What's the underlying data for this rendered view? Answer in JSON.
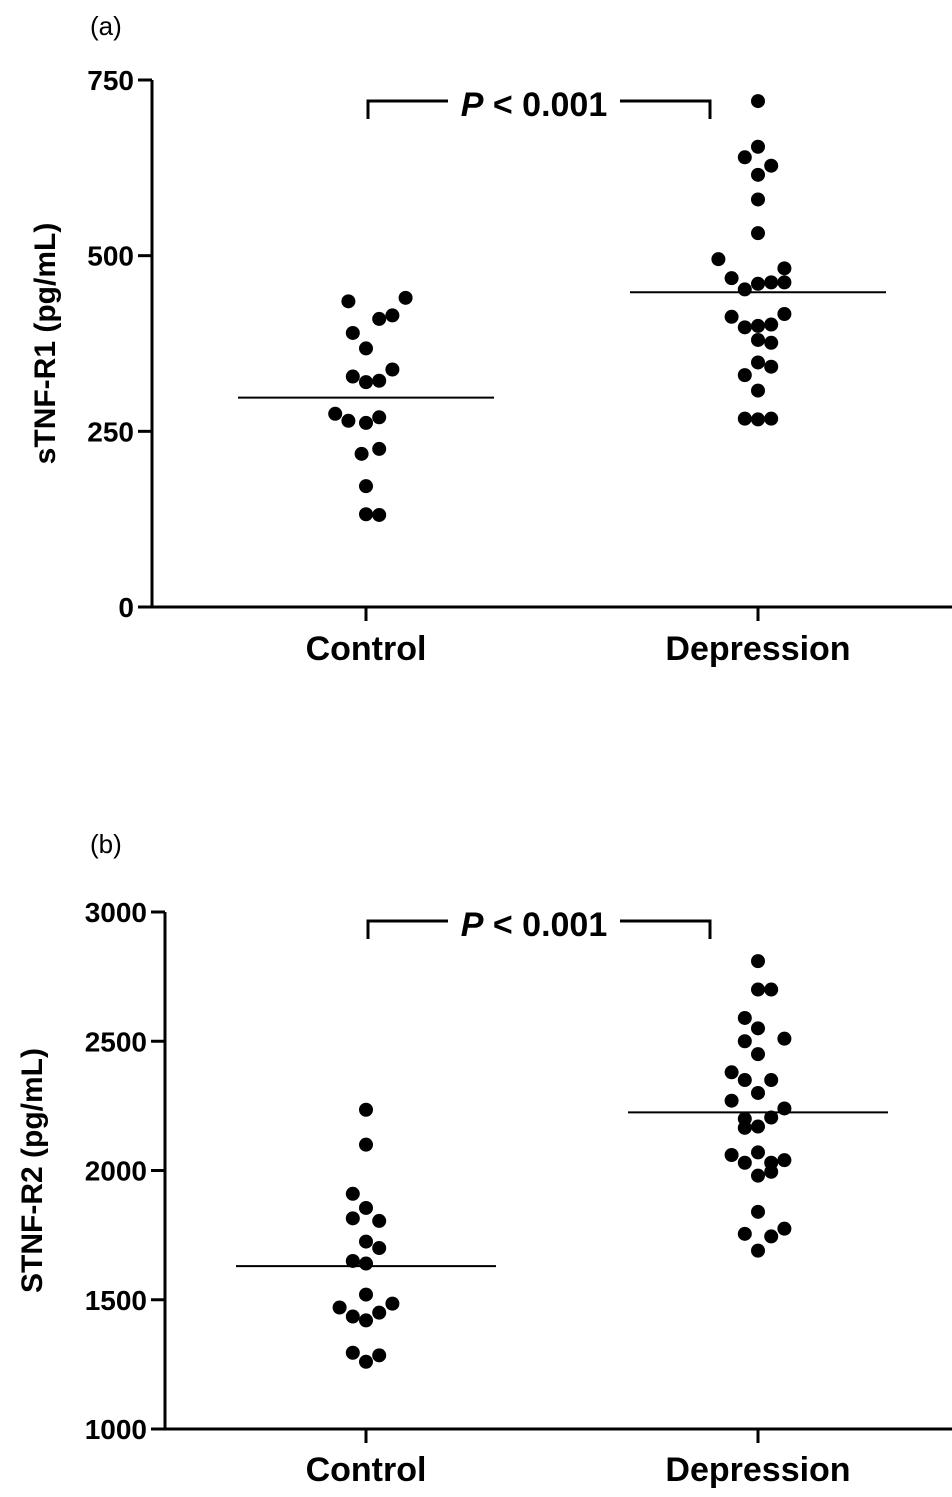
{
  "chart_data": [
    {
      "panel_label": "(a)",
      "type": "scatter",
      "ylabel": "sTNF-R1 (pg/mL)",
      "ylim": [
        0,
        750
      ],
      "yticks": [
        "0",
        "250",
        "500",
        "750"
      ],
      "categories": [
        "Control",
        "Depression"
      ],
      "annotation": {
        "italic": "P",
        "rest": " < 0.001"
      },
      "series": [
        {
          "category": "Control",
          "median": 298,
          "points": [
            {
              "x": -0.08,
              "y": 435
            },
            {
              "x": 0.06,
              "y": 410
            },
            {
              "x": 0.12,
              "y": 415
            },
            {
              "x": 0.18,
              "y": 440
            },
            {
              "x": -0.06,
              "y": 390
            },
            {
              "x": 0.0,
              "y": 368
            },
            {
              "x": -0.06,
              "y": 328
            },
            {
              "x": 0.0,
              "y": 320
            },
            {
              "x": 0.06,
              "y": 322
            },
            {
              "x": 0.12,
              "y": 338
            },
            {
              "x": -0.14,
              "y": 275
            },
            {
              "x": -0.08,
              "y": 265
            },
            {
              "x": 0.0,
              "y": 262
            },
            {
              "x": 0.06,
              "y": 270
            },
            {
              "x": -0.02,
              "y": 218
            },
            {
              "x": 0.06,
              "y": 225
            },
            {
              "x": 0.0,
              "y": 172
            },
            {
              "x": 0.0,
              "y": 132
            },
            {
              "x": 0.06,
              "y": 131
            }
          ]
        },
        {
          "category": "Depression",
          "median": 448,
          "points": [
            {
              "x": 0.0,
              "y": 720
            },
            {
              "x": -0.06,
              "y": 640
            },
            {
              "x": 0.0,
              "y": 655
            },
            {
              "x": 0.06,
              "y": 628
            },
            {
              "x": 0.0,
              "y": 615
            },
            {
              "x": 0.0,
              "y": 580
            },
            {
              "x": 0.0,
              "y": 532
            },
            {
              "x": -0.18,
              "y": 495
            },
            {
              "x": 0.12,
              "y": 482
            },
            {
              "x": -0.12,
              "y": 468
            },
            {
              "x": -0.06,
              "y": 452
            },
            {
              "x": 0.0,
              "y": 460
            },
            {
              "x": 0.06,
              "y": 462
            },
            {
              "x": 0.12,
              "y": 462
            },
            {
              "x": -0.12,
              "y": 413
            },
            {
              "x": -0.06,
              "y": 398
            },
            {
              "x": 0.0,
              "y": 400
            },
            {
              "x": 0.06,
              "y": 402
            },
            {
              "x": 0.12,
              "y": 417
            },
            {
              "x": 0.0,
              "y": 380
            },
            {
              "x": 0.06,
              "y": 376
            },
            {
              "x": 0.0,
              "y": 348
            },
            {
              "x": 0.06,
              "y": 342
            },
            {
              "x": -0.06,
              "y": 330
            },
            {
              "x": 0.0,
              "y": 308
            },
            {
              "x": -0.06,
              "y": 268
            },
            {
              "x": 0.0,
              "y": 267
            },
            {
              "x": 0.06,
              "y": 268
            }
          ]
        }
      ]
    },
    {
      "panel_label": "(b)",
      "type": "scatter",
      "ylabel": "STNF-R2 (pg/mL)",
      "ylim": [
        1000,
        3000
      ],
      "yticks": [
        "1000",
        "1500",
        "2000",
        "2500",
        "3000"
      ],
      "categories": [
        "Control",
        "Depression"
      ],
      "annotation": {
        "italic": "P",
        "rest": " < 0.001"
      },
      "series": [
        {
          "category": "Control",
          "median": 1630,
          "points": [
            {
              "x": 0.0,
              "y": 2235
            },
            {
              "x": 0.0,
              "y": 2100
            },
            {
              "x": -0.06,
              "y": 1910
            },
            {
              "x": 0.0,
              "y": 1855
            },
            {
              "x": -0.06,
              "y": 1815
            },
            {
              "x": 0.06,
              "y": 1805
            },
            {
              "x": 0.0,
              "y": 1725
            },
            {
              "x": 0.06,
              "y": 1700
            },
            {
              "x": -0.06,
              "y": 1650
            },
            {
              "x": 0.0,
              "y": 1640
            },
            {
              "x": 0.0,
              "y": 1520
            },
            {
              "x": -0.12,
              "y": 1470
            },
            {
              "x": 0.12,
              "y": 1485
            },
            {
              "x": -0.06,
              "y": 1435
            },
            {
              "x": 0.0,
              "y": 1420
            },
            {
              "x": 0.06,
              "y": 1450
            },
            {
              "x": -0.06,
              "y": 1295
            },
            {
              "x": 0.0,
              "y": 1260
            },
            {
              "x": 0.06,
              "y": 1285
            }
          ]
        },
        {
          "category": "Depression",
          "median": 2225,
          "points": [
            {
              "x": 0.0,
              "y": 2810
            },
            {
              "x": 0.0,
              "y": 2700
            },
            {
              "x": 0.06,
              "y": 2700
            },
            {
              "x": -0.06,
              "y": 2590
            },
            {
              "x": 0.0,
              "y": 2550
            },
            {
              "x": -0.06,
              "y": 2500
            },
            {
              "x": 0.0,
              "y": 2450
            },
            {
              "x": 0.12,
              "y": 2510
            },
            {
              "x": -0.12,
              "y": 2380
            },
            {
              "x": -0.06,
              "y": 2350
            },
            {
              "x": 0.06,
              "y": 2350
            },
            {
              "x": -0.12,
              "y": 2270
            },
            {
              "x": 0.0,
              "y": 2300
            },
            {
              "x": -0.06,
              "y": 2200
            },
            {
              "x": 0.06,
              "y": 2205
            },
            {
              "x": 0.12,
              "y": 2240
            },
            {
              "x": -0.06,
              "y": 2165
            },
            {
              "x": 0.0,
              "y": 2170
            },
            {
              "x": -0.12,
              "y": 2060
            },
            {
              "x": -0.06,
              "y": 2030
            },
            {
              "x": 0.0,
              "y": 2070
            },
            {
              "x": 0.06,
              "y": 2030
            },
            {
              "x": 0.12,
              "y": 2040
            },
            {
              "x": 0.0,
              "y": 1980
            },
            {
              "x": 0.06,
              "y": 1995
            },
            {
              "x": 0.0,
              "y": 1840
            },
            {
              "x": -0.06,
              "y": 1755
            },
            {
              "x": 0.06,
              "y": 1745
            },
            {
              "x": 0.12,
              "y": 1775
            },
            {
              "x": 0.0,
              "y": 1690
            }
          ]
        }
      ]
    }
  ]
}
